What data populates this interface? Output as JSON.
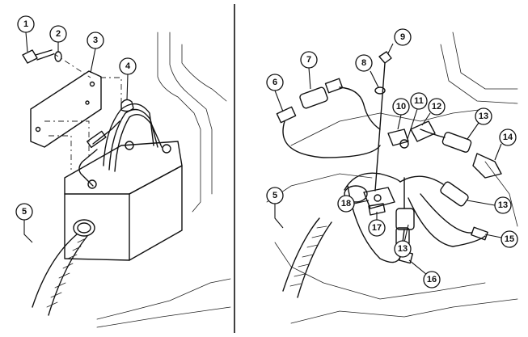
{
  "callouts_left": [
    {
      "label": "1"
    },
    {
      "label": "2"
    },
    {
      "label": "3"
    },
    {
      "label": "4"
    },
    {
      "label": "5"
    }
  ],
  "callouts_right": [
    {
      "label": "5"
    },
    {
      "label": "6"
    },
    {
      "label": "7"
    },
    {
      "label": "8"
    },
    {
      "label": "9"
    },
    {
      "label": "10"
    },
    {
      "label": "11"
    },
    {
      "label": "12"
    },
    {
      "label": "13"
    },
    {
      "label": "14"
    },
    {
      "label": "13"
    },
    {
      "label": "13"
    },
    {
      "label": "15"
    },
    {
      "label": "16"
    },
    {
      "label": "17"
    },
    {
      "label": "18"
    }
  ]
}
